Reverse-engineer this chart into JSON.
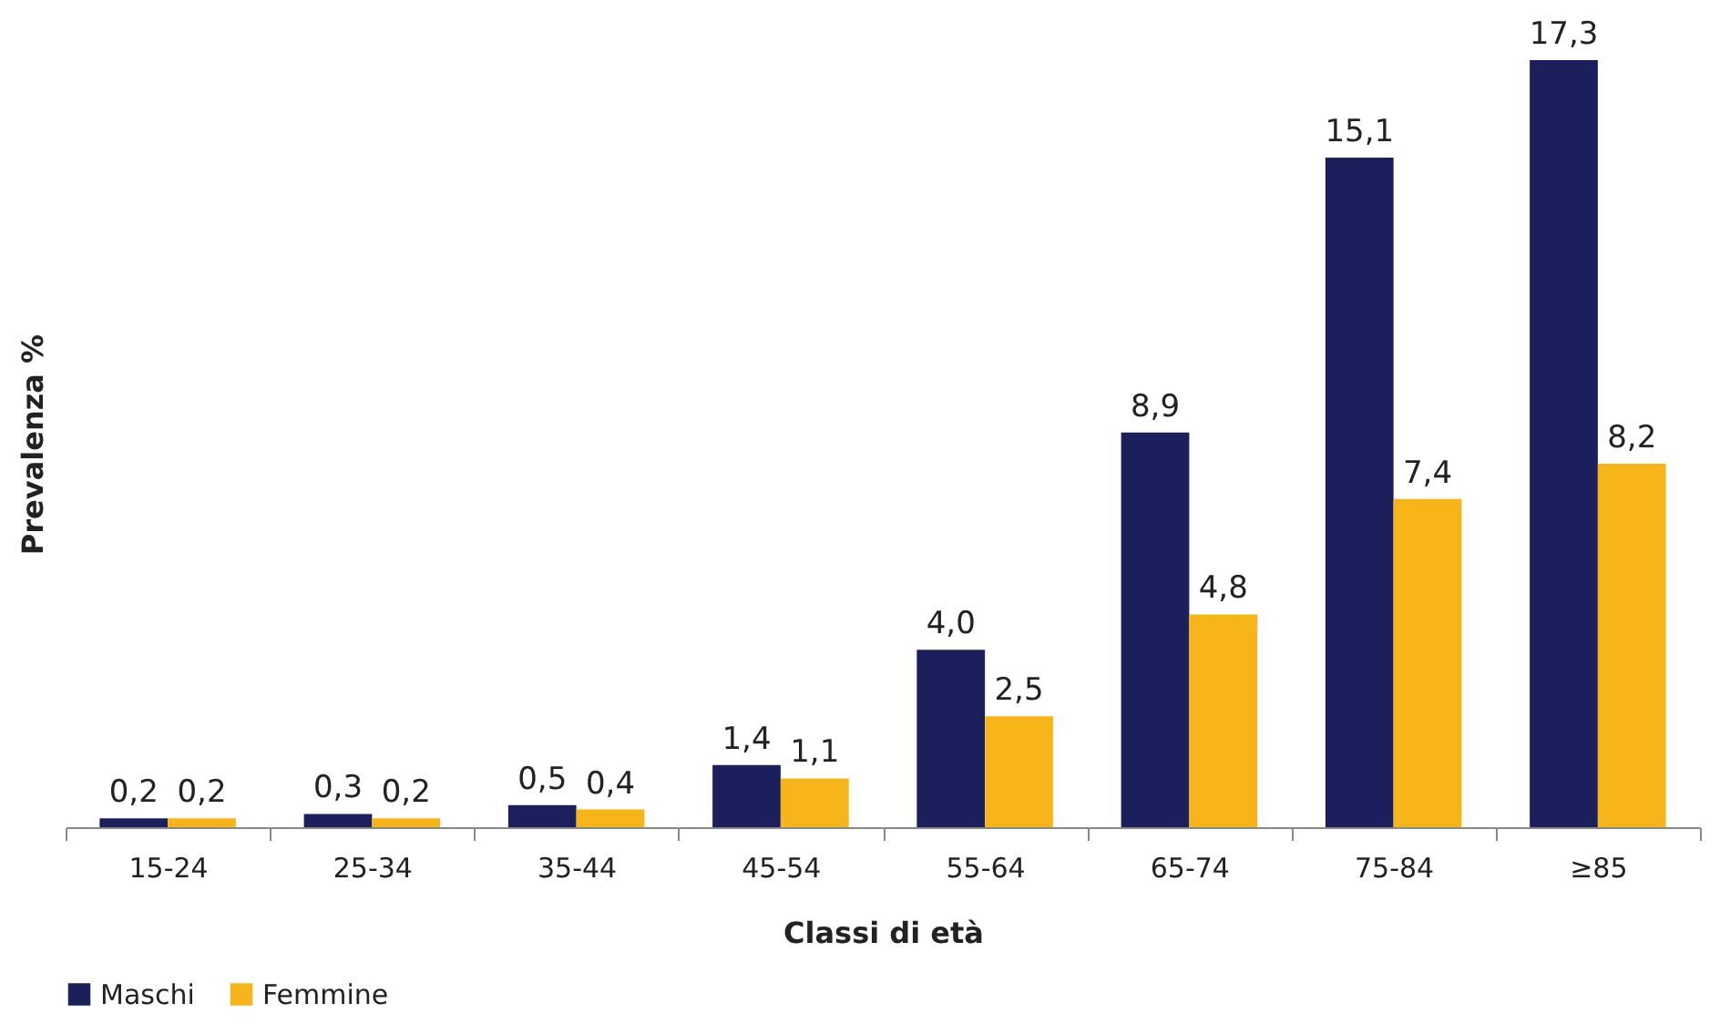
{
  "chart_data": {
    "type": "bar",
    "xlabel": "Classi di età",
    "ylabel": "Prevalenza %",
    "categories": [
      "15-24",
      "25-34",
      "35-44",
      "45-54",
      "55-64",
      "65-74",
      "75-84",
      "≥85"
    ],
    "series": [
      {
        "name": "Maschi",
        "color": "#1b1f5c",
        "values": [
          0.2,
          0.3,
          0.5,
          1.4,
          4.0,
          8.9,
          15.1,
          17.3
        ],
        "value_labels": [
          "0,2",
          "0,3",
          "0,5",
          "1,4",
          "4,0",
          "8,9",
          "15,1",
          "17,3"
        ]
      },
      {
        "name": "Femmine",
        "color": "#f7b519",
        "values": [
          0.2,
          0.2,
          0.4,
          1.1,
          2.5,
          4.8,
          7.4,
          8.2
        ],
        "value_labels": [
          "0,2",
          "0,2",
          "0,4",
          "1,1",
          "2,5",
          "4,8",
          "7,4",
          "8,2"
        ]
      }
    ],
    "legend": "bottom",
    "grid": false,
    "tick_labels": "x"
  }
}
